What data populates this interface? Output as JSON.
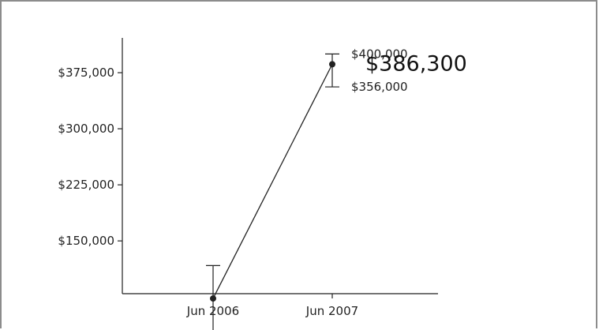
{
  "chart_data": {
    "type": "line",
    "title": "",
    "xlabel": "",
    "ylabel": "",
    "x": [
      "Jun 2006",
      "Jun 2007"
    ],
    "series": [
      {
        "values": [
          73000,
          386300
        ],
        "lower": [
          null,
          356000
        ],
        "upper": [
          null,
          400000
        ]
      }
    ],
    "yticks": [
      {
        "value": 150000,
        "label": "$150,000"
      },
      {
        "value": 225000,
        "label": "$225,000"
      },
      {
        "value": 300000,
        "label": "$300,000"
      },
      {
        "value": 375000,
        "label": "$375,000"
      }
    ],
    "highlight": {
      "label": "$386,300"
    },
    "bound_labels": {
      "upper": "$400,000",
      "lower": "$356,000"
    },
    "error_bar_2006": [
      30000,
      117000
    ],
    "ylim": [
      50000,
      400000
    ],
    "grid": false,
    "legend": "none",
    "colors": {
      "line": "#222222",
      "axis": "#222222",
      "text": "#222222",
      "frame": "#8c8c8c"
    }
  }
}
